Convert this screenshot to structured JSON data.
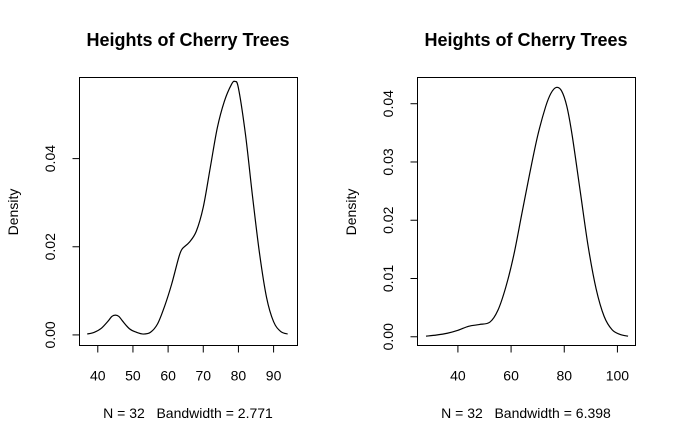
{
  "chart_data": [
    {
      "type": "line",
      "title": "Heights of Cherry Trees",
      "xlabel": "N = 32   Bandwidth = 2.771",
      "ylabel": "Density",
      "xlim": [
        34.8,
        96.8
      ],
      "ylim": [
        -0.0024,
        0.0584
      ],
      "xticks": [
        40,
        50,
        60,
        70,
        80,
        90
      ],
      "yticks": [
        0.0,
        0.02,
        0.04
      ],
      "ytick_labels": [
        "0.00",
        "0.02",
        "0.04"
      ],
      "grid": false,
      "x": [
        37,
        39,
        41,
        43,
        44,
        45,
        46,
        47,
        49,
        51,
        53,
        55,
        57,
        59,
        61,
        63,
        64,
        66,
        68,
        70,
        72,
        74,
        76,
        78,
        79,
        80,
        82,
        84,
        86,
        88,
        90,
        92,
        94
      ],
      "y": [
        0.0002,
        0.0006,
        0.0015,
        0.0032,
        0.0042,
        0.0045,
        0.0042,
        0.0032,
        0.0014,
        0.0006,
        0.0002,
        0.0006,
        0.0025,
        0.0065,
        0.0115,
        0.0175,
        0.0195,
        0.021,
        0.0235,
        0.029,
        0.038,
        0.047,
        0.053,
        0.0568,
        0.0575,
        0.056,
        0.0455,
        0.0315,
        0.0185,
        0.0085,
        0.003,
        0.0008,
        0.0002
      ]
    },
    {
      "type": "line",
      "title": "Heights of Cherry Trees",
      "xlabel": "N = 32   Bandwidth = 6.398",
      "ylabel": "Density",
      "xlim": [
        24.8,
        106.8
      ],
      "ylim": [
        -0.0015,
        0.0445
      ],
      "xticks": [
        40,
        60,
        80,
        100
      ],
      "yticks": [
        0.0,
        0.01,
        0.02,
        0.03,
        0.04
      ],
      "ytick_labels": [
        "0.00",
        "0.01",
        "0.02",
        "0.03",
        "0.04"
      ],
      "grid": false,
      "x": [
        28,
        32,
        36,
        40,
        44,
        48,
        52,
        55,
        58,
        61,
        64,
        67,
        70,
        73,
        75,
        77,
        79,
        81,
        83,
        86,
        89,
        92,
        95,
        98,
        101,
        104
      ],
      "y": [
        0.0001,
        0.0003,
        0.0006,
        0.0011,
        0.0018,
        0.0021,
        0.0025,
        0.0045,
        0.0085,
        0.014,
        0.021,
        0.028,
        0.0345,
        0.0395,
        0.0418,
        0.0428,
        0.0422,
        0.0395,
        0.0345,
        0.025,
        0.0155,
        0.0082,
        0.0035,
        0.0012,
        0.0004,
        0.0001
      ]
    }
  ]
}
